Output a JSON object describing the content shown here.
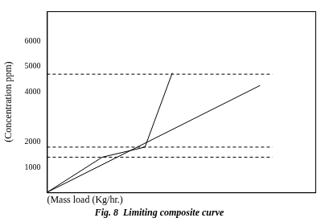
{
  "chart_data": {
    "type": "line",
    "title": "Fig. 8  Limiting composite curve",
    "x_label": "(Mass load (Kg/hr.)",
    "y_label": "(Concentration ppm)",
    "series": [
      {
        "x": [
          0,
          20.6,
          36.5,
          46.7
        ],
        "values": [
          0,
          1400,
          1800,
          4750
        ],
        "color": "#000000",
        "line_style": "solid"
      },
      {
        "x": [
          0,
          79.4
        ],
        "values": [
          0,
          4250
        ],
        "color": "#000000",
        "line_style": "solid"
      },
      {
        "x": [
          0,
          84
        ],
        "values": [
          4700,
          4700
        ],
        "color": "#000000",
        "line_style": "dashed"
      },
      {
        "x": [
          0,
          84
        ],
        "values": [
          1800,
          1800
        ],
        "color": "#000000",
        "line_style": "dashed"
      },
      {
        "x": [
          0,
          84
        ],
        "values": [
          1400,
          1400
        ],
        "color": "#000000",
        "line_style": "dashed"
      }
    ],
    "xlim": [
      0,
      100
    ],
    "ylim": [
      0,
      7200
    ],
    "yticks": [
      1000,
      2000,
      4000,
      5000,
      6000
    ],
    "tick_labels": "y",
    "grid": false
  }
}
